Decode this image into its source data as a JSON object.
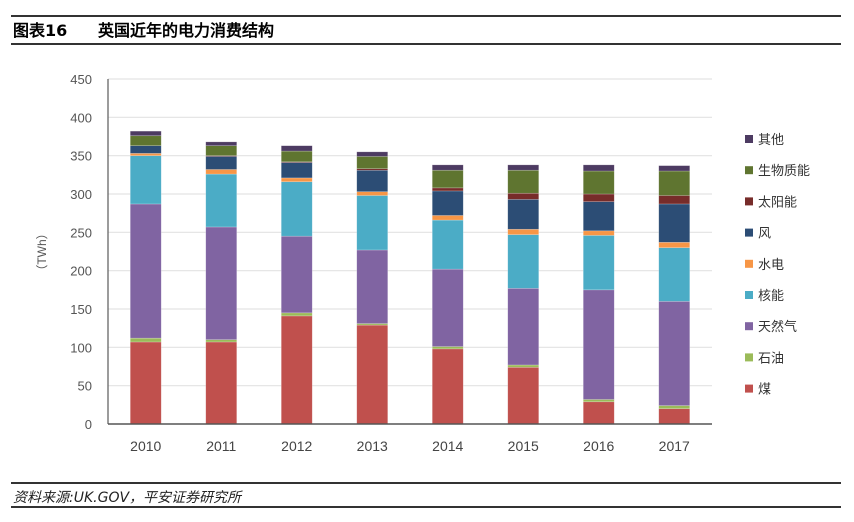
{
  "header": {
    "figure_label": "图表16",
    "title": "英国近年的电力消费结构"
  },
  "footer": {
    "source": "资料来源:UK.GOV，平安证券研究所"
  },
  "chart_data": {
    "type": "bar",
    "stacked": true,
    "title": "",
    "xlabel": "",
    "ylabel": "（TWh）",
    "ylim": [
      0,
      450
    ],
    "yticks": [
      0,
      50,
      100,
      150,
      200,
      250,
      300,
      350,
      400,
      450
    ],
    "grid": true,
    "legend_placement": "right",
    "categories": [
      "2010",
      "2011",
      "2012",
      "2013",
      "2014",
      "2015",
      "2016",
      "2017"
    ],
    "series": [
      {
        "name": "煤",
        "color": "#c0504d",
        "values": [
          107,
          107,
          141,
          129,
          98,
          74,
          29,
          20
        ]
      },
      {
        "name": "石油",
        "color": "#9bbb59",
        "values": [
          5,
          3,
          4,
          2,
          3,
          3,
          3,
          4
        ]
      },
      {
        "name": "天然气",
        "color": "#8064a2",
        "values": [
          175,
          147,
          100,
          96,
          101,
          100,
          143,
          136
        ]
      },
      {
        "name": "核能",
        "color": "#4bacc6",
        "values": [
          63,
          69,
          71,
          71,
          64,
          70,
          71,
          70
        ]
      },
      {
        "name": "水电",
        "color": "#f79646",
        "values": [
          3,
          6,
          5,
          5,
          6,
          7,
          6,
          7
        ]
      },
      {
        "name": "风",
        "color": "#2c4d75",
        "values": [
          10,
          17,
          20,
          28,
          32,
          39,
          38,
          50
        ]
      },
      {
        "name": "太阳能",
        "color": "#772c2a",
        "values": [
          0,
          1,
          1,
          2,
          4,
          8,
          10,
          11
        ]
      },
      {
        "name": "生物质能",
        "color": "#5f7530",
        "values": [
          13,
          13,
          14,
          16,
          23,
          30,
          30,
          32
        ]
      },
      {
        "name": "其他",
        "color": "#4d3b62",
        "values": [
          6,
          5,
          7,
          6,
          7,
          7,
          8,
          7
        ]
      }
    ]
  }
}
